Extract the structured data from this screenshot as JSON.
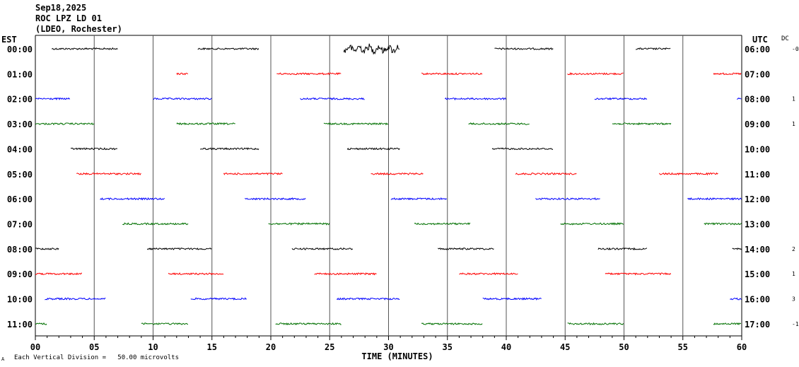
{
  "header": {
    "date": "Sep18,2025",
    "station": "ROC LPZ LD 01",
    "network": "(LDEO, Rochester)"
  },
  "left_axis_label": "EST",
  "right_axis_label": "UTC",
  "dc_label": "DC",
  "xlabel": "TIME (MINUTES)",
  "footnote": "Each Vertical Division =   50.00 microvolts",
  "footnote_mark": "A",
  "chart_data": {
    "type": "line",
    "title": "",
    "xlabel": "TIME (MINUTES)",
    "ylabel": "",
    "xlim": [
      0,
      60
    ],
    "x_ticks": [
      "00",
      "05",
      "10",
      "15",
      "20",
      "25",
      "30",
      "35",
      "40",
      "45",
      "50",
      "55",
      "60"
    ],
    "grid": "vertical lines every 5 minutes",
    "colors": [
      "#000000",
      "#ff0000",
      "#0000ff",
      "#007000"
    ],
    "rows": [
      {
        "est": "00:00",
        "utc": "06:00",
        "dc": "-0",
        "color": "#000000",
        "segments": [
          [
            1.4,
            7.0
          ],
          [
            13.8,
            19.0
          ],
          [
            26.2,
            31.0
          ],
          [
            39.0,
            44.0
          ],
          [
            51.0,
            54.0
          ]
        ],
        "events": [
          [
            26.2,
            31.0
          ]
        ]
      },
      {
        "est": "01:00",
        "utc": "07:00",
        "dc": "",
        "color": "#ff0000",
        "segments": [
          [
            12.0,
            13.0
          ],
          [
            20.5,
            26.0
          ],
          [
            32.8,
            38.0
          ],
          [
            45.2,
            50.0
          ],
          [
            57.6,
            60.0
          ]
        ]
      },
      {
        "est": "02:00",
        "utc": "08:00",
        "dc": "1",
        "color": "#0000ff",
        "segments": [
          [
            0.0,
            3.0
          ],
          [
            10.0,
            15.0
          ],
          [
            22.5,
            28.0
          ],
          [
            34.8,
            40.0
          ],
          [
            47.5,
            52.0
          ],
          [
            59.6,
            60.0
          ]
        ]
      },
      {
        "est": "03:00",
        "utc": "09:00",
        "dc": "1",
        "color": "#007000",
        "segments": [
          [
            0.0,
            5.0
          ],
          [
            12.0,
            17.0
          ],
          [
            24.5,
            30.0
          ],
          [
            36.8,
            42.0
          ],
          [
            49.0,
            54.0
          ]
        ]
      },
      {
        "est": "04:00",
        "utc": "10:00",
        "dc": "",
        "color": "#000000",
        "segments": [
          [
            3.0,
            7.0
          ],
          [
            14.0,
            19.0
          ],
          [
            26.5,
            31.0
          ],
          [
            38.8,
            44.0
          ]
        ]
      },
      {
        "est": "05:00",
        "utc": "11:00",
        "dc": "",
        "color": "#ff0000",
        "segments": [
          [
            3.5,
            9.0
          ],
          [
            16.0,
            21.0
          ],
          [
            28.5,
            33.0
          ],
          [
            40.8,
            46.0
          ],
          [
            53.0,
            58.0
          ]
        ]
      },
      {
        "est": "06:00",
        "utc": "12:00",
        "dc": "",
        "color": "#0000ff",
        "segments": [
          [
            5.5,
            11.0
          ],
          [
            17.8,
            23.0
          ],
          [
            30.2,
            35.0
          ],
          [
            42.5,
            48.0
          ],
          [
            55.4,
            60.0
          ]
        ]
      },
      {
        "est": "07:00",
        "utc": "13:00",
        "dc": "",
        "color": "#007000",
        "segments": [
          [
            7.4,
            13.0
          ],
          [
            19.8,
            25.0
          ],
          [
            32.2,
            37.0
          ],
          [
            44.6,
            50.0
          ],
          [
            56.8,
            60.0
          ]
        ]
      },
      {
        "est": "08:00",
        "utc": "14:00",
        "dc": "2",
        "color": "#000000",
        "segments": [
          [
            0.0,
            2.0
          ],
          [
            9.5,
            15.0
          ],
          [
            21.8,
            27.0
          ],
          [
            34.2,
            39.0
          ],
          [
            47.8,
            52.0
          ],
          [
            59.2,
            60.0
          ]
        ]
      },
      {
        "est": "09:00",
        "utc": "15:00",
        "dc": "1",
        "color": "#ff0000",
        "segments": [
          [
            0.0,
            4.0
          ],
          [
            11.3,
            16.0
          ],
          [
            23.7,
            29.0
          ],
          [
            36.0,
            41.0
          ],
          [
            48.4,
            54.0
          ]
        ]
      },
      {
        "est": "10:00",
        "utc": "16:00",
        "dc": "3",
        "color": "#0000ff",
        "segments": [
          [
            0.8,
            6.0
          ],
          [
            13.2,
            18.0
          ],
          [
            25.6,
            31.0
          ],
          [
            38.0,
            43.0
          ],
          [
            59.0,
            60.0
          ]
        ]
      },
      {
        "est": "11:00",
        "utc": "17:00",
        "dc": "-1",
        "color": "#007000",
        "segments": [
          [
            0.0,
            1.0
          ],
          [
            9.0,
            13.0
          ],
          [
            20.4,
            26.0
          ],
          [
            32.8,
            38.0
          ],
          [
            45.2,
            50.0
          ],
          [
            57.6,
            60.0
          ]
        ]
      }
    ]
  }
}
